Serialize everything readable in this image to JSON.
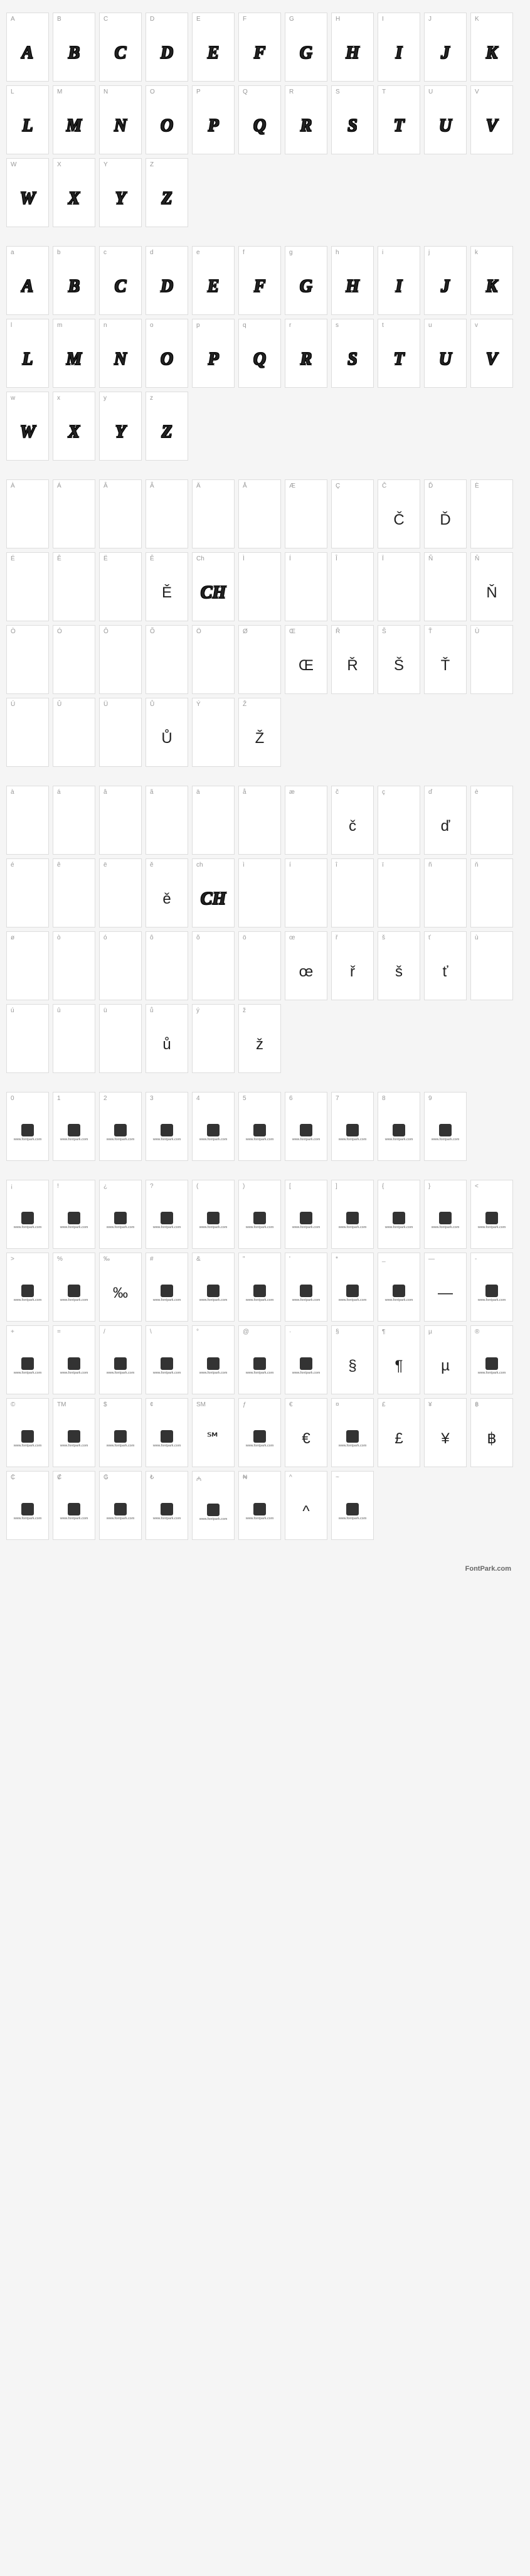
{
  "footer": "FontPark.com",
  "logo_text": "www.fontpark.com",
  "sections": [
    {
      "id": "uppercase",
      "style": "decorative",
      "cells": [
        {
          "label": "A",
          "glyph": "A"
        },
        {
          "label": "B",
          "glyph": "B"
        },
        {
          "label": "C",
          "glyph": "C"
        },
        {
          "label": "D",
          "glyph": "D"
        },
        {
          "label": "E",
          "glyph": "E"
        },
        {
          "label": "F",
          "glyph": "F"
        },
        {
          "label": "G",
          "glyph": "G"
        },
        {
          "label": "H",
          "glyph": "H"
        },
        {
          "label": "I",
          "glyph": "I"
        },
        {
          "label": "J",
          "glyph": "J"
        },
        {
          "label": "K",
          "glyph": "K"
        },
        {
          "label": "L",
          "glyph": "L"
        },
        {
          "label": "M",
          "glyph": "M"
        },
        {
          "label": "N",
          "glyph": "N"
        },
        {
          "label": "O",
          "glyph": "O"
        },
        {
          "label": "P",
          "glyph": "P"
        },
        {
          "label": "Q",
          "glyph": "Q"
        },
        {
          "label": "R",
          "glyph": "R"
        },
        {
          "label": "S",
          "glyph": "S"
        },
        {
          "label": "T",
          "glyph": "T"
        },
        {
          "label": "U",
          "glyph": "U"
        },
        {
          "label": "V",
          "glyph": "V"
        },
        {
          "label": "W",
          "glyph": "W"
        },
        {
          "label": "X",
          "glyph": "X"
        },
        {
          "label": "Y",
          "glyph": "Y"
        },
        {
          "label": "Z",
          "glyph": "Z"
        }
      ]
    },
    {
      "id": "lowercase",
      "style": "decorative",
      "cells": [
        {
          "label": "a",
          "glyph": "A"
        },
        {
          "label": "b",
          "glyph": "B"
        },
        {
          "label": "c",
          "glyph": "C"
        },
        {
          "label": "d",
          "glyph": "D"
        },
        {
          "label": "e",
          "glyph": "E"
        },
        {
          "label": "f",
          "glyph": "F"
        },
        {
          "label": "g",
          "glyph": "G"
        },
        {
          "label": "h",
          "glyph": "H"
        },
        {
          "label": "i",
          "glyph": "I"
        },
        {
          "label": "j",
          "glyph": "J"
        },
        {
          "label": "k",
          "glyph": "K"
        },
        {
          "label": "l",
          "glyph": "L"
        },
        {
          "label": "m",
          "glyph": "M"
        },
        {
          "label": "n",
          "glyph": "N"
        },
        {
          "label": "o",
          "glyph": "O"
        },
        {
          "label": "p",
          "glyph": "P"
        },
        {
          "label": "q",
          "glyph": "Q"
        },
        {
          "label": "r",
          "glyph": "R"
        },
        {
          "label": "s",
          "glyph": "S"
        },
        {
          "label": "t",
          "glyph": "T"
        },
        {
          "label": "u",
          "glyph": "U"
        },
        {
          "label": "v",
          "glyph": "V"
        },
        {
          "label": "w",
          "glyph": "W"
        },
        {
          "label": "x",
          "glyph": "X"
        },
        {
          "label": "y",
          "glyph": "Y"
        },
        {
          "label": "z",
          "glyph": "Z"
        }
      ]
    },
    {
      "id": "accented-upper",
      "style": "mixed",
      "cells": [
        {
          "label": "À",
          "glyph": "",
          "style": "empty"
        },
        {
          "label": "Á",
          "glyph": "",
          "style": "empty"
        },
        {
          "label": "Â",
          "glyph": "",
          "style": "empty"
        },
        {
          "label": "Ã",
          "glyph": "",
          "style": "empty"
        },
        {
          "label": "Ä",
          "glyph": "",
          "style": "empty"
        },
        {
          "label": "Å",
          "glyph": "",
          "style": "empty"
        },
        {
          "label": "Æ",
          "glyph": "",
          "style": "empty"
        },
        {
          "label": "Ç",
          "glyph": "",
          "style": "empty"
        },
        {
          "label": "Č",
          "glyph": "Č",
          "style": "fallback"
        },
        {
          "label": "Ď",
          "glyph": "Ď",
          "style": "fallback"
        },
        {
          "label": "È",
          "glyph": "",
          "style": "empty"
        },
        {
          "label": "É",
          "glyph": "",
          "style": "empty"
        },
        {
          "label": "Ê",
          "glyph": "",
          "style": "empty"
        },
        {
          "label": "Ë",
          "glyph": "",
          "style": "empty"
        },
        {
          "label": "Ě",
          "glyph": "Ě",
          "style": "fallback"
        },
        {
          "label": "Ch",
          "glyph": "CH",
          "style": "decorative"
        },
        {
          "label": "Ì",
          "glyph": "",
          "style": "empty"
        },
        {
          "label": "Í",
          "glyph": "",
          "style": "empty"
        },
        {
          "label": "Î",
          "glyph": "",
          "style": "empty"
        },
        {
          "label": "Ï",
          "glyph": "",
          "style": "empty"
        },
        {
          "label": "Ñ",
          "glyph": "",
          "style": "empty"
        },
        {
          "label": "Ň",
          "glyph": "Ň",
          "style": "fallback"
        },
        {
          "label": "Ò",
          "glyph": "",
          "style": "empty"
        },
        {
          "label": "Ó",
          "glyph": "",
          "style": "empty"
        },
        {
          "label": "Ô",
          "glyph": "",
          "style": "empty"
        },
        {
          "label": "Õ",
          "glyph": "",
          "style": "empty"
        },
        {
          "label": "Ö",
          "glyph": "",
          "style": "empty"
        },
        {
          "label": "Ø",
          "glyph": "",
          "style": "empty"
        },
        {
          "label": "Œ",
          "glyph": "Œ",
          "style": "fallback"
        },
        {
          "label": "Ř",
          "glyph": "Ř",
          "style": "fallback"
        },
        {
          "label": "Š",
          "glyph": "Š",
          "style": "fallback"
        },
        {
          "label": "Ť",
          "glyph": "Ť",
          "style": "fallback"
        },
        {
          "label": "Ù",
          "glyph": "",
          "style": "empty"
        },
        {
          "label": "Ú",
          "glyph": "",
          "style": "empty"
        },
        {
          "label": "Û",
          "glyph": "",
          "style": "empty"
        },
        {
          "label": "Ü",
          "glyph": "",
          "style": "empty"
        },
        {
          "label": "Ů",
          "glyph": "Ů",
          "style": "fallback"
        },
        {
          "label": "Ý",
          "glyph": "",
          "style": "empty"
        },
        {
          "label": "Ž",
          "glyph": "Ž",
          "style": "fallback"
        }
      ]
    },
    {
      "id": "accented-lower",
      "style": "mixed",
      "cells": [
        {
          "label": "à",
          "glyph": "",
          "style": "empty"
        },
        {
          "label": "á",
          "glyph": "",
          "style": "empty"
        },
        {
          "label": "â",
          "glyph": "",
          "style": "empty"
        },
        {
          "label": "ã",
          "glyph": "",
          "style": "empty"
        },
        {
          "label": "ä",
          "glyph": "",
          "style": "empty"
        },
        {
          "label": "å",
          "glyph": "",
          "style": "empty"
        },
        {
          "label": "æ",
          "glyph": "",
          "style": "empty"
        },
        {
          "label": "č",
          "glyph": "č",
          "style": "fallback"
        },
        {
          "label": "ç",
          "glyph": "",
          "style": "empty"
        },
        {
          "label": "ď",
          "glyph": "ď",
          "style": "fallback"
        },
        {
          "label": "è",
          "glyph": "",
          "style": "empty"
        },
        {
          "label": "é",
          "glyph": "",
          "style": "empty"
        },
        {
          "label": "ê",
          "glyph": "",
          "style": "empty"
        },
        {
          "label": "ë",
          "glyph": "",
          "style": "empty"
        },
        {
          "label": "ě",
          "glyph": "ě",
          "style": "fallback"
        },
        {
          "label": "ch",
          "glyph": "CH",
          "style": "decorative"
        },
        {
          "label": "ì",
          "glyph": "",
          "style": "empty"
        },
        {
          "label": "í",
          "glyph": "",
          "style": "empty"
        },
        {
          "label": "î",
          "glyph": "",
          "style": "empty"
        },
        {
          "label": "ï",
          "glyph": "",
          "style": "empty"
        },
        {
          "label": "ñ",
          "glyph": "",
          "style": "empty"
        },
        {
          "label": "ň",
          "glyph": "",
          "style": "empty"
        },
        {
          "label": "ø",
          "glyph": "",
          "style": "empty"
        },
        {
          "label": "ò",
          "glyph": "",
          "style": "empty"
        },
        {
          "label": "ó",
          "glyph": "",
          "style": "empty"
        },
        {
          "label": "ô",
          "glyph": "",
          "style": "empty"
        },
        {
          "label": "õ",
          "glyph": "",
          "style": "empty"
        },
        {
          "label": "ö",
          "glyph": "",
          "style": "empty"
        },
        {
          "label": "œ",
          "glyph": "œ",
          "style": "fallback"
        },
        {
          "label": "ř",
          "glyph": "ř",
          "style": "fallback"
        },
        {
          "label": "š",
          "glyph": "š",
          "style": "fallback"
        },
        {
          "label": "ť",
          "glyph": "ť",
          "style": "fallback"
        },
        {
          "label": "ù",
          "glyph": "",
          "style": "empty"
        },
        {
          "label": "ú",
          "glyph": "",
          "style": "empty"
        },
        {
          "label": "û",
          "glyph": "",
          "style": "empty"
        },
        {
          "label": "ü",
          "glyph": "",
          "style": "empty"
        },
        {
          "label": "ů",
          "glyph": "ů",
          "style": "fallback"
        },
        {
          "label": "ý",
          "glyph": "",
          "style": "empty"
        },
        {
          "label": "ž",
          "glyph": "ž",
          "style": "fallback"
        }
      ]
    },
    {
      "id": "digits",
      "style": "logo",
      "cells": [
        {
          "label": "0",
          "glyph": "logo"
        },
        {
          "label": "1",
          "glyph": "logo"
        },
        {
          "label": "2",
          "glyph": "logo"
        },
        {
          "label": "3",
          "glyph": "logo"
        },
        {
          "label": "4",
          "glyph": "logo"
        },
        {
          "label": "5",
          "glyph": "logo"
        },
        {
          "label": "6",
          "glyph": "logo"
        },
        {
          "label": "7",
          "glyph": "logo"
        },
        {
          "label": "8",
          "glyph": "logo"
        },
        {
          "label": "9",
          "glyph": "logo"
        }
      ]
    },
    {
      "id": "punct1",
      "style": "logo",
      "cells": [
        {
          "label": "¡",
          "glyph": "logo"
        },
        {
          "label": "!",
          "glyph": "logo"
        },
        {
          "label": "¿",
          "glyph": "logo"
        },
        {
          "label": "?",
          "glyph": "logo"
        },
        {
          "label": "(",
          "glyph": "logo"
        },
        {
          "label": ")",
          "glyph": "logo"
        },
        {
          "label": "[",
          "glyph": "logo"
        },
        {
          "label": "]",
          "glyph": "logo"
        },
        {
          "label": "{",
          "glyph": "logo"
        },
        {
          "label": "}",
          "glyph": "logo"
        },
        {
          "label": "<",
          "glyph": "logo"
        },
        {
          "label": ">",
          "glyph": "logo"
        },
        {
          "label": "%",
          "glyph": "logo"
        },
        {
          "label": "‰",
          "glyph": "‰",
          "style": "fallback"
        },
        {
          "label": "#",
          "glyph": "logo"
        },
        {
          "label": "&",
          "glyph": "logo"
        },
        {
          "label": "\"",
          "glyph": "logo"
        },
        {
          "label": "'",
          "glyph": "logo"
        },
        {
          "label": "*",
          "glyph": "logo"
        },
        {
          "label": "_",
          "glyph": "logo"
        },
        {
          "label": "—",
          "glyph": "—",
          "style": "fallback"
        },
        {
          "label": "-",
          "glyph": "logo"
        },
        {
          "label": "+",
          "glyph": "logo"
        },
        {
          "label": "=",
          "glyph": "logo"
        },
        {
          "label": "/",
          "glyph": "logo"
        },
        {
          "label": "\\",
          "glyph": "logo"
        },
        {
          "label": "°",
          "glyph": "logo"
        },
        {
          "label": "@",
          "glyph": "logo"
        },
        {
          "label": "·",
          "glyph": "logo"
        },
        {
          "label": "§",
          "glyph": "§",
          "style": "fallback"
        },
        {
          "label": "¶",
          "glyph": "¶",
          "style": "fallback"
        },
        {
          "label": "µ",
          "glyph": "µ",
          "style": "fallback"
        },
        {
          "label": "®",
          "glyph": "logo"
        },
        {
          "label": "©",
          "glyph": "logo"
        },
        {
          "label": "TM",
          "glyph": "logo"
        },
        {
          "label": "$",
          "glyph": "logo"
        },
        {
          "label": "¢",
          "glyph": "logo"
        },
        {
          "label": "SM",
          "glyph": "℠",
          "style": "fallback"
        },
        {
          "label": "ƒ",
          "glyph": "logo"
        },
        {
          "label": "€",
          "glyph": "€",
          "style": "fallback"
        },
        {
          "label": "¤",
          "glyph": "logo"
        },
        {
          "label": "£",
          "glyph": "£",
          "style": "fallback"
        },
        {
          "label": "¥",
          "glyph": "¥",
          "style": "fallback"
        },
        {
          "label": "฿",
          "glyph": "฿",
          "style": "fallback"
        },
        {
          "label": "₵",
          "glyph": "logo"
        },
        {
          "label": "₡",
          "glyph": "logo"
        },
        {
          "label": "₲",
          "glyph": "logo"
        },
        {
          "label": "₺",
          "glyph": "logo"
        },
        {
          "label": "₼",
          "glyph": "logo"
        },
        {
          "label": "₦",
          "glyph": "logo"
        },
        {
          "label": "^",
          "glyph": "^",
          "style": "fallback"
        },
        {
          "label": "~",
          "glyph": "logo"
        }
      ]
    }
  ]
}
